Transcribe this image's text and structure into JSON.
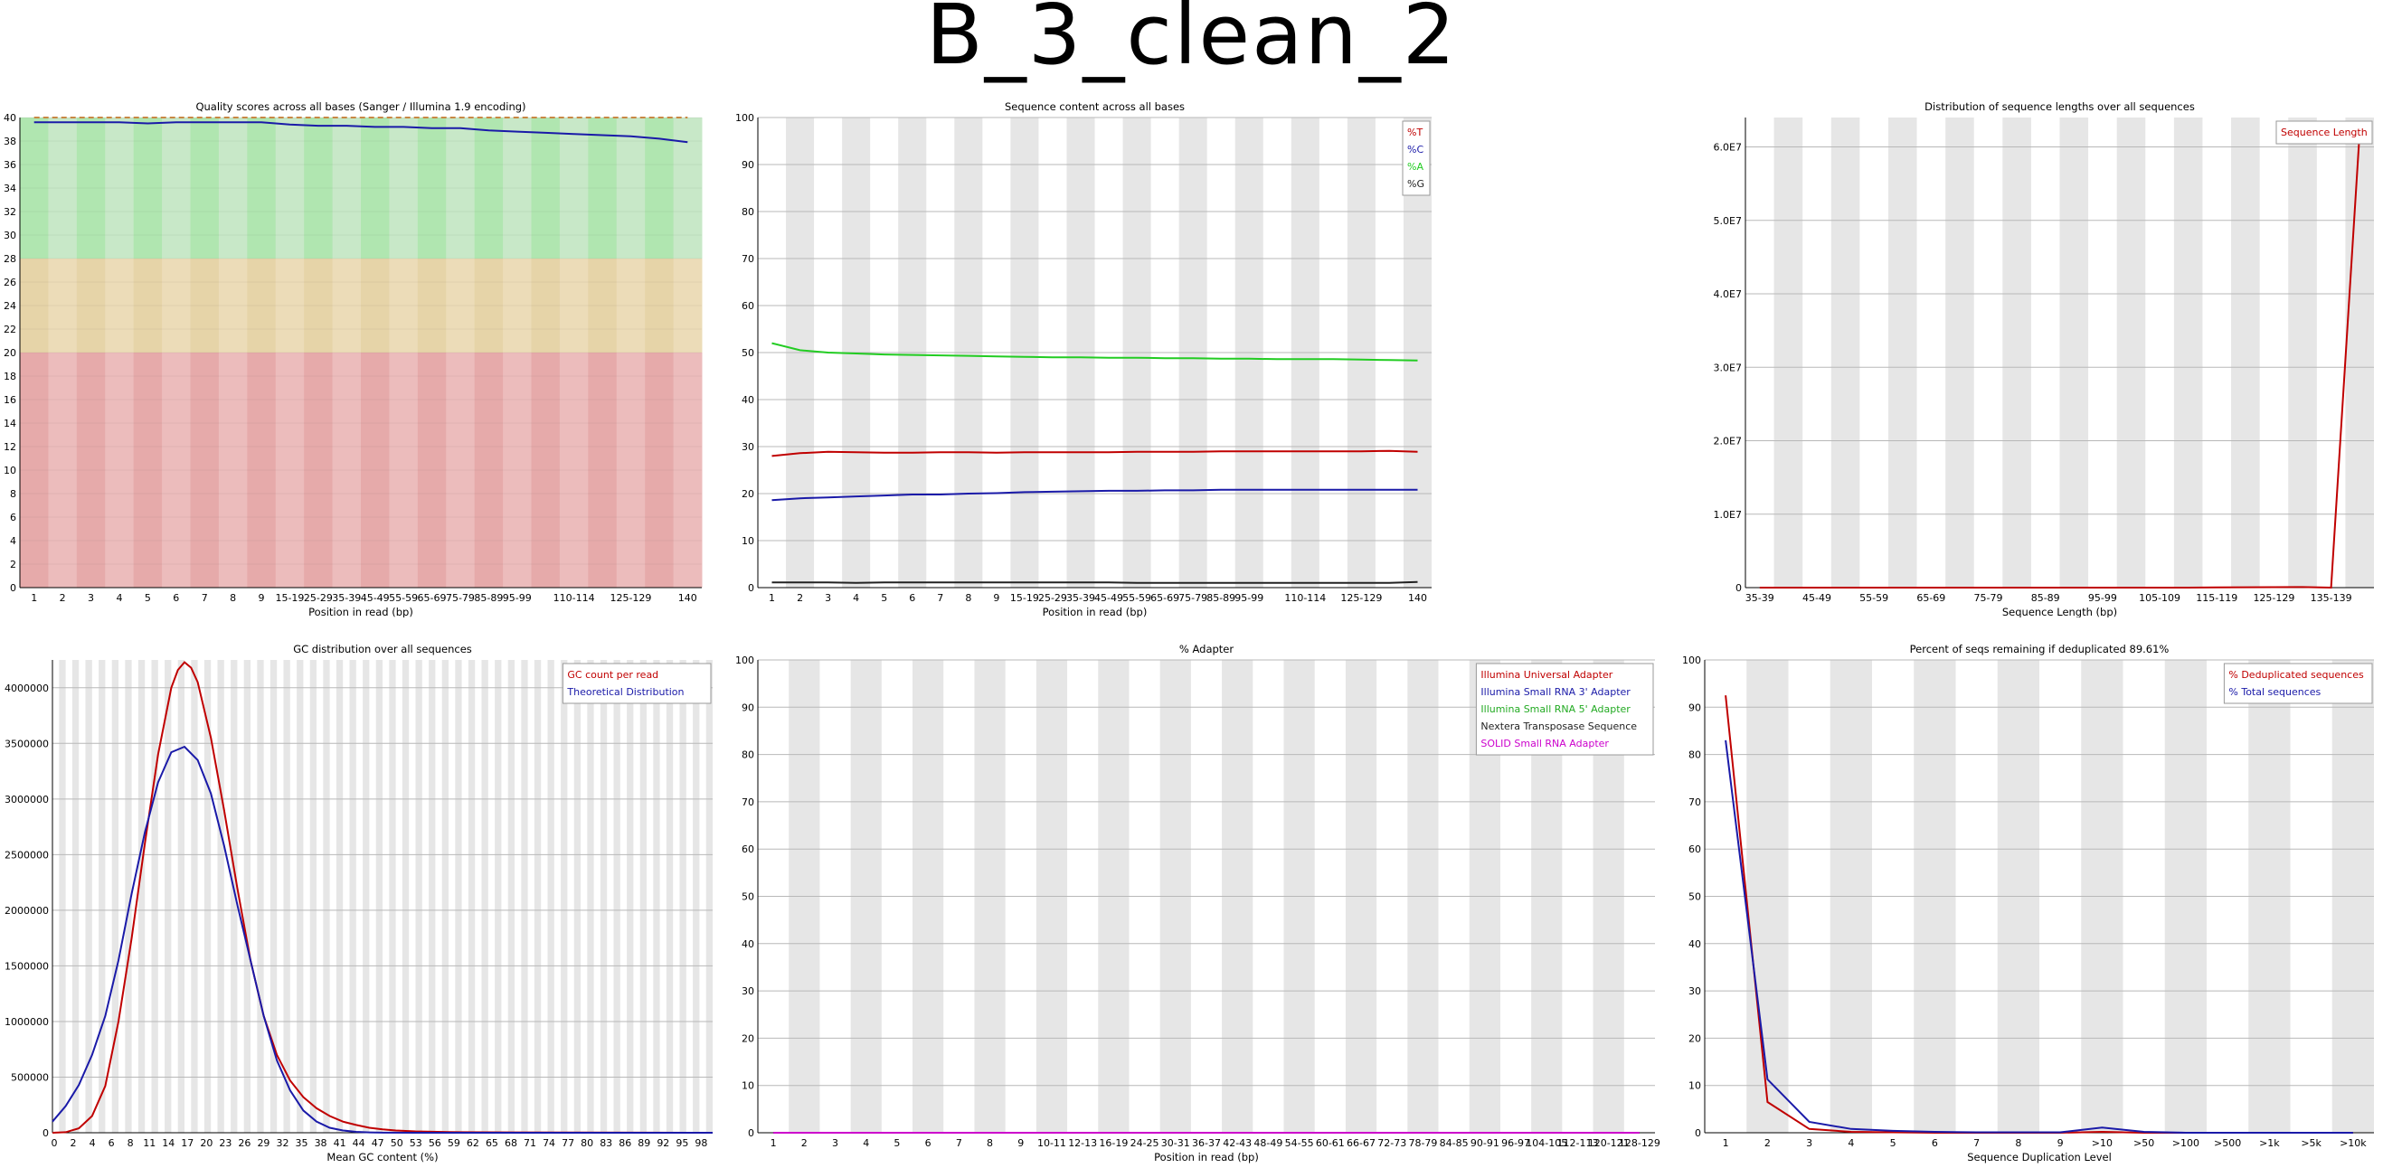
{
  "page": {
    "title": "B_3_clean_2"
  },
  "chart_data": [
    {
      "id": "quality",
      "type": "line",
      "title": "Quality scores across all bases (Sanger / Illumina 1.9 encoding)",
      "xlabel": "Position in read (bp)",
      "ylabel": "",
      "x_labels": [
        "1",
        "2",
        "3",
        "4",
        "5",
        "6",
        "7",
        "8",
        "9",
        "15-19",
        "25-29",
        "35-39",
        "45-49",
        "55-59",
        "65-69",
        "75-79",
        "85-89",
        "95-99",
        "",
        "110-114",
        "",
        "125-129",
        "",
        "140"
      ],
      "ylim": [
        0,
        40
      ],
      "y_ticks": [
        0,
        2,
        4,
        6,
        8,
        10,
        12,
        14,
        16,
        18,
        20,
        22,
        24,
        26,
        28,
        30,
        32,
        34,
        36,
        38,
        40
      ],
      "bands": [
        {
          "from": 28,
          "to": 40,
          "colors": [
            "#b0e6b0",
            "#c8e8c8"
          ]
        },
        {
          "from": 20,
          "to": 28,
          "colors": [
            "#e6d4a8",
            "#ecdcb8"
          ]
        },
        {
          "from": 0,
          "to": 20,
          "colors": [
            "#e6aaaa",
            "#ecbcbc"
          ]
        }
      ],
      "series": [
        {
          "color": "#1a1aa8",
          "values": [
            39.6,
            39.6,
            39.6,
            39.6,
            39.5,
            39.6,
            39.6,
            39.6,
            39.6,
            39.4,
            39.3,
            39.3,
            39.2,
            39.2,
            39.1,
            39.1,
            38.9,
            38.8,
            38.7,
            38.6,
            38.5,
            38.4,
            38.2,
            37.9
          ]
        },
        {
          "color": "#c88844",
          "dashed": true,
          "values": [
            40,
            40,
            40,
            40,
            40,
            40,
            40,
            40,
            40,
            40,
            40,
            40,
            40,
            40,
            40,
            40,
            40,
            40,
            40,
            40,
            40,
            40,
            40,
            40
          ]
        }
      ]
    },
    {
      "id": "seq_content",
      "type": "line",
      "title": "Sequence content across all bases",
      "xlabel": "Position in read (bp)",
      "x_labels": [
        "1",
        "2",
        "3",
        "4",
        "5",
        "6",
        "7",
        "8",
        "9",
        "15-19",
        "25-29",
        "35-39",
        "45-49",
        "55-59",
        "65-69",
        "75-79",
        "85-89",
        "95-99",
        "",
        "110-114",
        "",
        "125-129",
        "",
        "140"
      ],
      "ylim": [
        0,
        100
      ],
      "y_ticks": [
        0,
        10,
        20,
        30,
        40,
        50,
        60,
        70,
        80,
        90,
        100
      ],
      "series": [
        {
          "name": "%T",
          "color": "#c00000",
          "values": [
            28,
            28.6,
            28.9,
            28.8,
            28.7,
            28.7,
            28.8,
            28.8,
            28.7,
            28.8,
            28.8,
            28.8,
            28.8,
            28.9,
            28.9,
            28.9,
            29,
            29,
            29,
            29,
            29,
            29,
            29.1,
            28.9
          ]
        },
        {
          "name": "%C",
          "color": "#1a1aa8",
          "values": [
            18.6,
            19,
            19.2,
            19.4,
            19.6,
            19.8,
            19.8,
            20,
            20.1,
            20.3,
            20.4,
            20.5,
            20.6,
            20.6,
            20.7,
            20.7,
            20.8,
            20.8,
            20.8,
            20.8,
            20.8,
            20.8,
            20.8,
            20.8
          ]
        },
        {
          "name": "%A",
          "color": "#22cc22",
          "values": [
            52,
            50.5,
            50,
            49.8,
            49.6,
            49.5,
            49.4,
            49.3,
            49.2,
            49.1,
            49,
            49,
            48.9,
            48.9,
            48.8,
            48.8,
            48.7,
            48.7,
            48.6,
            48.6,
            48.6,
            48.5,
            48.4,
            48.3
          ]
        },
        {
          "name": "%G",
          "color": "#222222",
          "values": [
            1.1,
            1.1,
            1.1,
            1,
            1.1,
            1.1,
            1.1,
            1.1,
            1.1,
            1.1,
            1.1,
            1.1,
            1.1,
            1,
            1,
            1,
            1,
            1,
            1,
            1,
            1,
            1,
            1,
            1.2
          ]
        }
      ]
    },
    {
      "id": "seq_length",
      "type": "line",
      "title": "Distribution of sequence lengths over all sequences",
      "xlabel": "Sequence Length (bp)",
      "x_labels": [
        "35-39",
        "",
        "45-49",
        "",
        "55-59",
        "",
        "65-69",
        "",
        "75-79",
        "",
        "85-89",
        "",
        "95-99",
        "",
        "105-109",
        "",
        "115-119",
        "",
        "125-129",
        "",
        "135-139",
        ""
      ],
      "ylim": [
        0,
        64000000.0
      ],
      "y_ticks": [
        0,
        10000000.0,
        20000000.0,
        30000000.0,
        40000000.0,
        50000000.0,
        60000000.0
      ],
      "y_tick_labels": [
        "0",
        "1.0E7",
        "2.0E7",
        "3.0E7",
        "4.0E7",
        "5.0E7",
        "6.0E7"
      ],
      "series": [
        {
          "name": "Sequence Length",
          "color": "#c00000",
          "values": [
            0,
            0,
            0,
            0,
            0,
            0,
            0,
            0,
            0,
            0,
            0,
            0,
            0,
            0,
            0,
            0,
            20000,
            50000,
            60000,
            80000,
            0,
            62000000
          ]
        }
      ]
    },
    {
      "id": "gc",
      "type": "line",
      "title": "GC distribution over all sequences",
      "xlabel": "Mean GC content (%)",
      "x_labels": [
        "0",
        "2",
        "4",
        "6",
        "8",
        "11",
        "14",
        "17",
        "20",
        "23",
        "26",
        "29",
        "32",
        "35",
        "38",
        "41",
        "44",
        "47",
        "50",
        "53",
        "56",
        "59",
        "62",
        "65",
        "68",
        "71",
        "74",
        "77",
        "80",
        "83",
        "86",
        "89",
        "92",
        "95",
        "98"
      ],
      "ylim": [
        0,
        4250000
      ],
      "y_ticks": [
        0,
        500000,
        1000000,
        1500000,
        2000000,
        2500000,
        3000000,
        3500000,
        4000000
      ],
      "series": [
        {
          "name": "GC count per read",
          "color": "#c00000",
          "x": [
            0,
            2,
            4,
            6,
            8,
            10,
            12,
            14,
            16,
            18,
            19,
            20,
            21,
            22,
            24,
            26,
            28,
            30,
            32,
            34,
            36,
            38,
            40,
            42,
            44,
            46,
            48,
            50,
            52,
            55,
            60,
            70,
            80,
            90,
            100
          ],
          "values": [
            0,
            5000,
            40000,
            150000,
            420000,
            1000000,
            1750000,
            2600000,
            3400000,
            4000000,
            4160000,
            4230000,
            4180000,
            4050000,
            3550000,
            2900000,
            2200000,
            1550000,
            1050000,
            700000,
            470000,
            320000,
            220000,
            150000,
            100000,
            70000,
            45000,
            30000,
            20000,
            12000,
            6000,
            3000,
            2000,
            1000,
            0
          ]
        },
        {
          "name": "Theoretical Distribution",
          "color": "#1a1aa8",
          "x": [
            0,
            2,
            4,
            6,
            8,
            10,
            12,
            14,
            16,
            18,
            20,
            22,
            24,
            26,
            28,
            30,
            32,
            34,
            36,
            38,
            40,
            42,
            44,
            46,
            48,
            50,
            55,
            60,
            70,
            80,
            90,
            100
          ],
          "values": [
            100000,
            240000,
            430000,
            700000,
            1050000,
            1550000,
            2150000,
            2700000,
            3150000,
            3420000,
            3470000,
            3350000,
            3050000,
            2580000,
            2050000,
            1550000,
            1050000,
            650000,
            380000,
            200000,
            100000,
            45000,
            20000,
            8000,
            3000,
            1000,
            0,
            0,
            0,
            0,
            0,
            0
          ]
        }
      ]
    },
    {
      "id": "adapter",
      "type": "line",
      "title": "% Adapter",
      "xlabel": "Position in read (bp)",
      "x_labels": [
        "1",
        "2",
        "3",
        "4",
        "5",
        "6",
        "7",
        "8",
        "9",
        "10-11",
        "12-13",
        "16-19",
        "24-25",
        "30-31",
        "36-37",
        "42-43",
        "48-49",
        "54-55",
        "60-61",
        "66-67",
        "72-73",
        "78-79",
        "84-85",
        "90-91",
        "96-97",
        "104-105",
        "112-113",
        "120-121",
        "128-129"
      ],
      "ylim": [
        0,
        100
      ],
      "y_ticks": [
        0,
        10,
        20,
        30,
        40,
        50,
        60,
        70,
        80,
        90,
        100
      ],
      "series": [
        {
          "name": "Illumina Universal Adapter",
          "color": "#c00000",
          "values": [
            0,
            0
          ]
        },
        {
          "name": "Illumina Small RNA 3' Adapter",
          "color": "#1a1aa8",
          "values": [
            0,
            0
          ]
        },
        {
          "name": "Illumina Small RNA 5' Adapter",
          "color": "#22aa22",
          "values": [
            0,
            0
          ]
        },
        {
          "name": "Nextera Transposase Sequence",
          "color": "#222222",
          "values": [
            0,
            0
          ]
        },
        {
          "name": "SOLID Small RNA Adapter",
          "color": "#cc00cc",
          "values": [
            0,
            0
          ]
        }
      ]
    },
    {
      "id": "dup",
      "type": "line",
      "title": "Percent of seqs remaining if deduplicated 89.61%",
      "xlabel": "Sequence Duplication Level",
      "x_labels": [
        "1",
        "2",
        "3",
        "4",
        "5",
        "6",
        "7",
        "8",
        "9",
        ">10",
        ">50",
        ">100",
        ">500",
        ">1k",
        ">5k",
        ">10k"
      ],
      "ylim": [
        0,
        100
      ],
      "y_ticks": [
        0,
        10,
        20,
        30,
        40,
        50,
        60,
        70,
        80,
        90,
        100
      ],
      "series": [
        {
          "name": "% Deduplicated sequences",
          "color": "#c00000",
          "values": [
            92.5,
            6.5,
            0.8,
            0.2,
            0.1,
            0,
            0,
            0,
            0,
            0.2,
            0,
            0,
            0,
            0,
            0,
            0
          ]
        },
        {
          "name": "% Total sequences",
          "color": "#1a1aa8",
          "values": [
            83,
            11.3,
            2.3,
            0.8,
            0.4,
            0.2,
            0.1,
            0.1,
            0.1,
            1.1,
            0.2,
            0,
            0,
            0,
            0,
            0
          ]
        }
      ]
    }
  ]
}
